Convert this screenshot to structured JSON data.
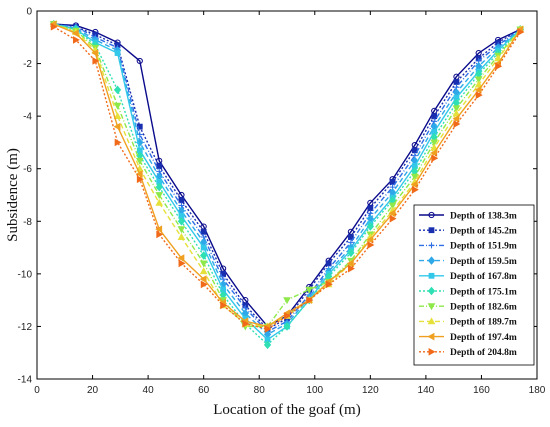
{
  "chart_data": {
    "type": "line",
    "title": "",
    "xlabel": "Location of the goaf (m)",
    "ylabel": "Subsidence (m)",
    "xlim": [
      0,
      180
    ],
    "ylim": [
      -14,
      0
    ],
    "xticks": [
      0,
      20,
      40,
      60,
      80,
      100,
      120,
      140,
      160,
      180
    ],
    "yticks": [
      0,
      -2,
      -4,
      -6,
      -8,
      -10,
      -12,
      -14
    ],
    "legend_position": "right-center",
    "grid": false,
    "x": [
      6,
      14,
      21,
      29,
      37,
      44,
      52,
      60,
      67,
      75,
      83,
      90,
      98,
      105,
      113,
      120,
      128,
      136,
      143,
      151,
      159,
      166,
      174
    ],
    "series": [
      {
        "name": "Depth of 138.3m",
        "color": "#0a0a8c",
        "dash": "",
        "marker": "circle",
        "values": [
          -0.5,
          -0.55,
          -0.8,
          -1.2,
          -1.9,
          -5.7,
          -7.0,
          -8.2,
          -9.8,
          -11.0,
          -12.0,
          -11.6,
          -10.5,
          -9.5,
          -8.4,
          -7.3,
          -6.4,
          -5.1,
          -3.8,
          -2.5,
          -1.6,
          -1.1,
          -0.7
        ]
      },
      {
        "name": "Depth of 145.2m",
        "color": "#1a2fb0",
        "dash": "2,2",
        "marker": "square",
        "values": [
          -0.5,
          -0.6,
          -0.9,
          -1.3,
          -4.4,
          -5.9,
          -7.2,
          -8.4,
          -10.0,
          -11.2,
          -12.1,
          -11.7,
          -10.6,
          -9.6,
          -8.6,
          -7.5,
          -6.5,
          -5.3,
          -4.0,
          -2.7,
          -1.8,
          -1.2,
          -0.7
        ]
      },
      {
        "name": "Depth of 151.9m",
        "color": "#2f6fe6",
        "dash": "5,2,1,2",
        "marker": "plus",
        "values": [
          -0.5,
          -0.6,
          -1.0,
          -1.4,
          -4.7,
          -6.1,
          -7.4,
          -8.6,
          -10.2,
          -11.3,
          -12.2,
          -11.8,
          -10.8,
          -9.8,
          -8.8,
          -7.7,
          -6.7,
          -5.5,
          -4.2,
          -2.9,
          -1.9,
          -1.3,
          -0.7
        ]
      },
      {
        "name": "Depth of 159.5m",
        "color": "#2ea8e8",
        "dash": "5,3",
        "marker": "diamond",
        "values": [
          -0.5,
          -0.65,
          -1.1,
          -1.5,
          -5.0,
          -6.3,
          -7.6,
          -8.8,
          -10.4,
          -11.5,
          -12.3,
          -11.9,
          -10.9,
          -9.9,
          -9.0,
          -7.9,
          -6.9,
          -5.7,
          -4.4,
          -3.1,
          -2.1,
          -1.4,
          -0.7
        ]
      },
      {
        "name": "Depth of 167.8m",
        "color": "#33c8ea",
        "dash": "",
        "marker": "square",
        "values": [
          -0.5,
          -0.7,
          -1.2,
          -1.6,
          -5.3,
          -6.5,
          -7.8,
          -9.0,
          -10.6,
          -11.7,
          -12.5,
          -12.0,
          -11.0,
          -10.0,
          -9.1,
          -8.1,
          -7.1,
          -5.9,
          -4.6,
          -3.3,
          -2.3,
          -1.5,
          -0.7
        ]
      },
      {
        "name": "Depth of 175.1m",
        "color": "#2ee0b4",
        "dash": "2,2",
        "marker": "diamond",
        "values": [
          -0.5,
          -0.7,
          -1.3,
          -3.0,
          -5.5,
          -6.7,
          -8.0,
          -9.3,
          -10.8,
          -11.9,
          -12.7,
          -12.0,
          -11.0,
          -10.1,
          -9.2,
          -8.2,
          -7.2,
          -6.1,
          -4.8,
          -3.5,
          -2.4,
          -1.6,
          -0.7
        ]
      },
      {
        "name": "Depth of 182.6m",
        "color": "#8ee84a",
        "dash": "5,2,1,2",
        "marker": "triangle-down",
        "values": [
          -0.5,
          -0.75,
          -1.4,
          -3.6,
          -5.7,
          -7.0,
          -8.3,
          -9.6,
          -11.0,
          -12.0,
          -12.0,
          -11.0,
          -10.6,
          -10.3,
          -9.5,
          -8.5,
          -7.4,
          -6.3,
          -5.0,
          -3.7,
          -2.6,
          -1.7,
          -0.7
        ]
      },
      {
        "name": "Depth of 189.7m",
        "color": "#e6e03a",
        "dash": "5,3",
        "marker": "triangle-up",
        "values": [
          -0.5,
          -0.8,
          -1.5,
          -4.0,
          -6.0,
          -7.3,
          -8.6,
          -9.9,
          -11.2,
          -11.9,
          -12.0,
          -11.6,
          -11.0,
          -10.4,
          -9.6,
          -8.6,
          -7.6,
          -6.5,
          -5.2,
          -3.9,
          -2.8,
          -1.8,
          -0.7
        ]
      },
      {
        "name": "Depth of 197.4m",
        "color": "#f0a020",
        "dash": "",
        "marker": "triangle-left",
        "values": [
          -0.5,
          -0.85,
          -1.6,
          -4.4,
          -6.2,
          -8.3,
          -9.4,
          -10.2,
          -11.1,
          -11.8,
          -12.0,
          -11.5,
          -11.0,
          -10.3,
          -9.6,
          -8.7,
          -7.7,
          -6.6,
          -5.4,
          -4.1,
          -3.0,
          -2.0,
          -0.7
        ]
      },
      {
        "name": "Depth of 204.8m",
        "color": "#f06a1a",
        "dash": "2,2",
        "marker": "triangle-right",
        "values": [
          -0.6,
          -1.1,
          -1.9,
          -5.0,
          -6.4,
          -8.5,
          -9.6,
          -10.4,
          -11.2,
          -11.9,
          -12.1,
          -11.6,
          -11.0,
          -10.4,
          -9.8,
          -8.9,
          -7.9,
          -6.8,
          -5.6,
          -4.3,
          -3.2,
          -2.1,
          -0.8
        ]
      }
    ]
  }
}
